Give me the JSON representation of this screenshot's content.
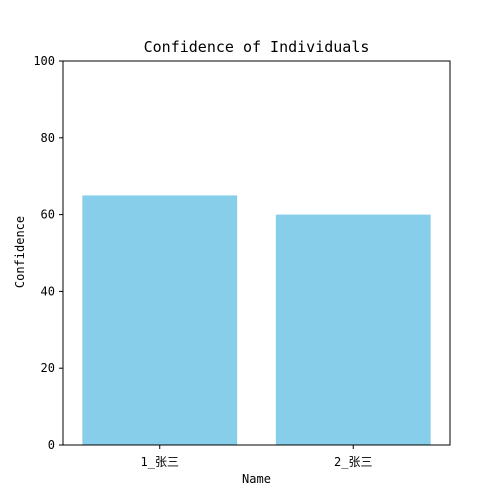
{
  "chart_data": {
    "type": "bar",
    "title": "Confidence of Individuals",
    "xlabel": "Name",
    "ylabel": "Confidence",
    "categories": [
      "1_张三",
      "2_张三"
    ],
    "values": [
      65,
      60
    ],
    "ylim": [
      0,
      100
    ],
    "yticks": [
      0,
      20,
      40,
      60,
      80,
      100
    ],
    "bar_color": "#87CEEB",
    "grid": false,
    "legend": "none"
  }
}
